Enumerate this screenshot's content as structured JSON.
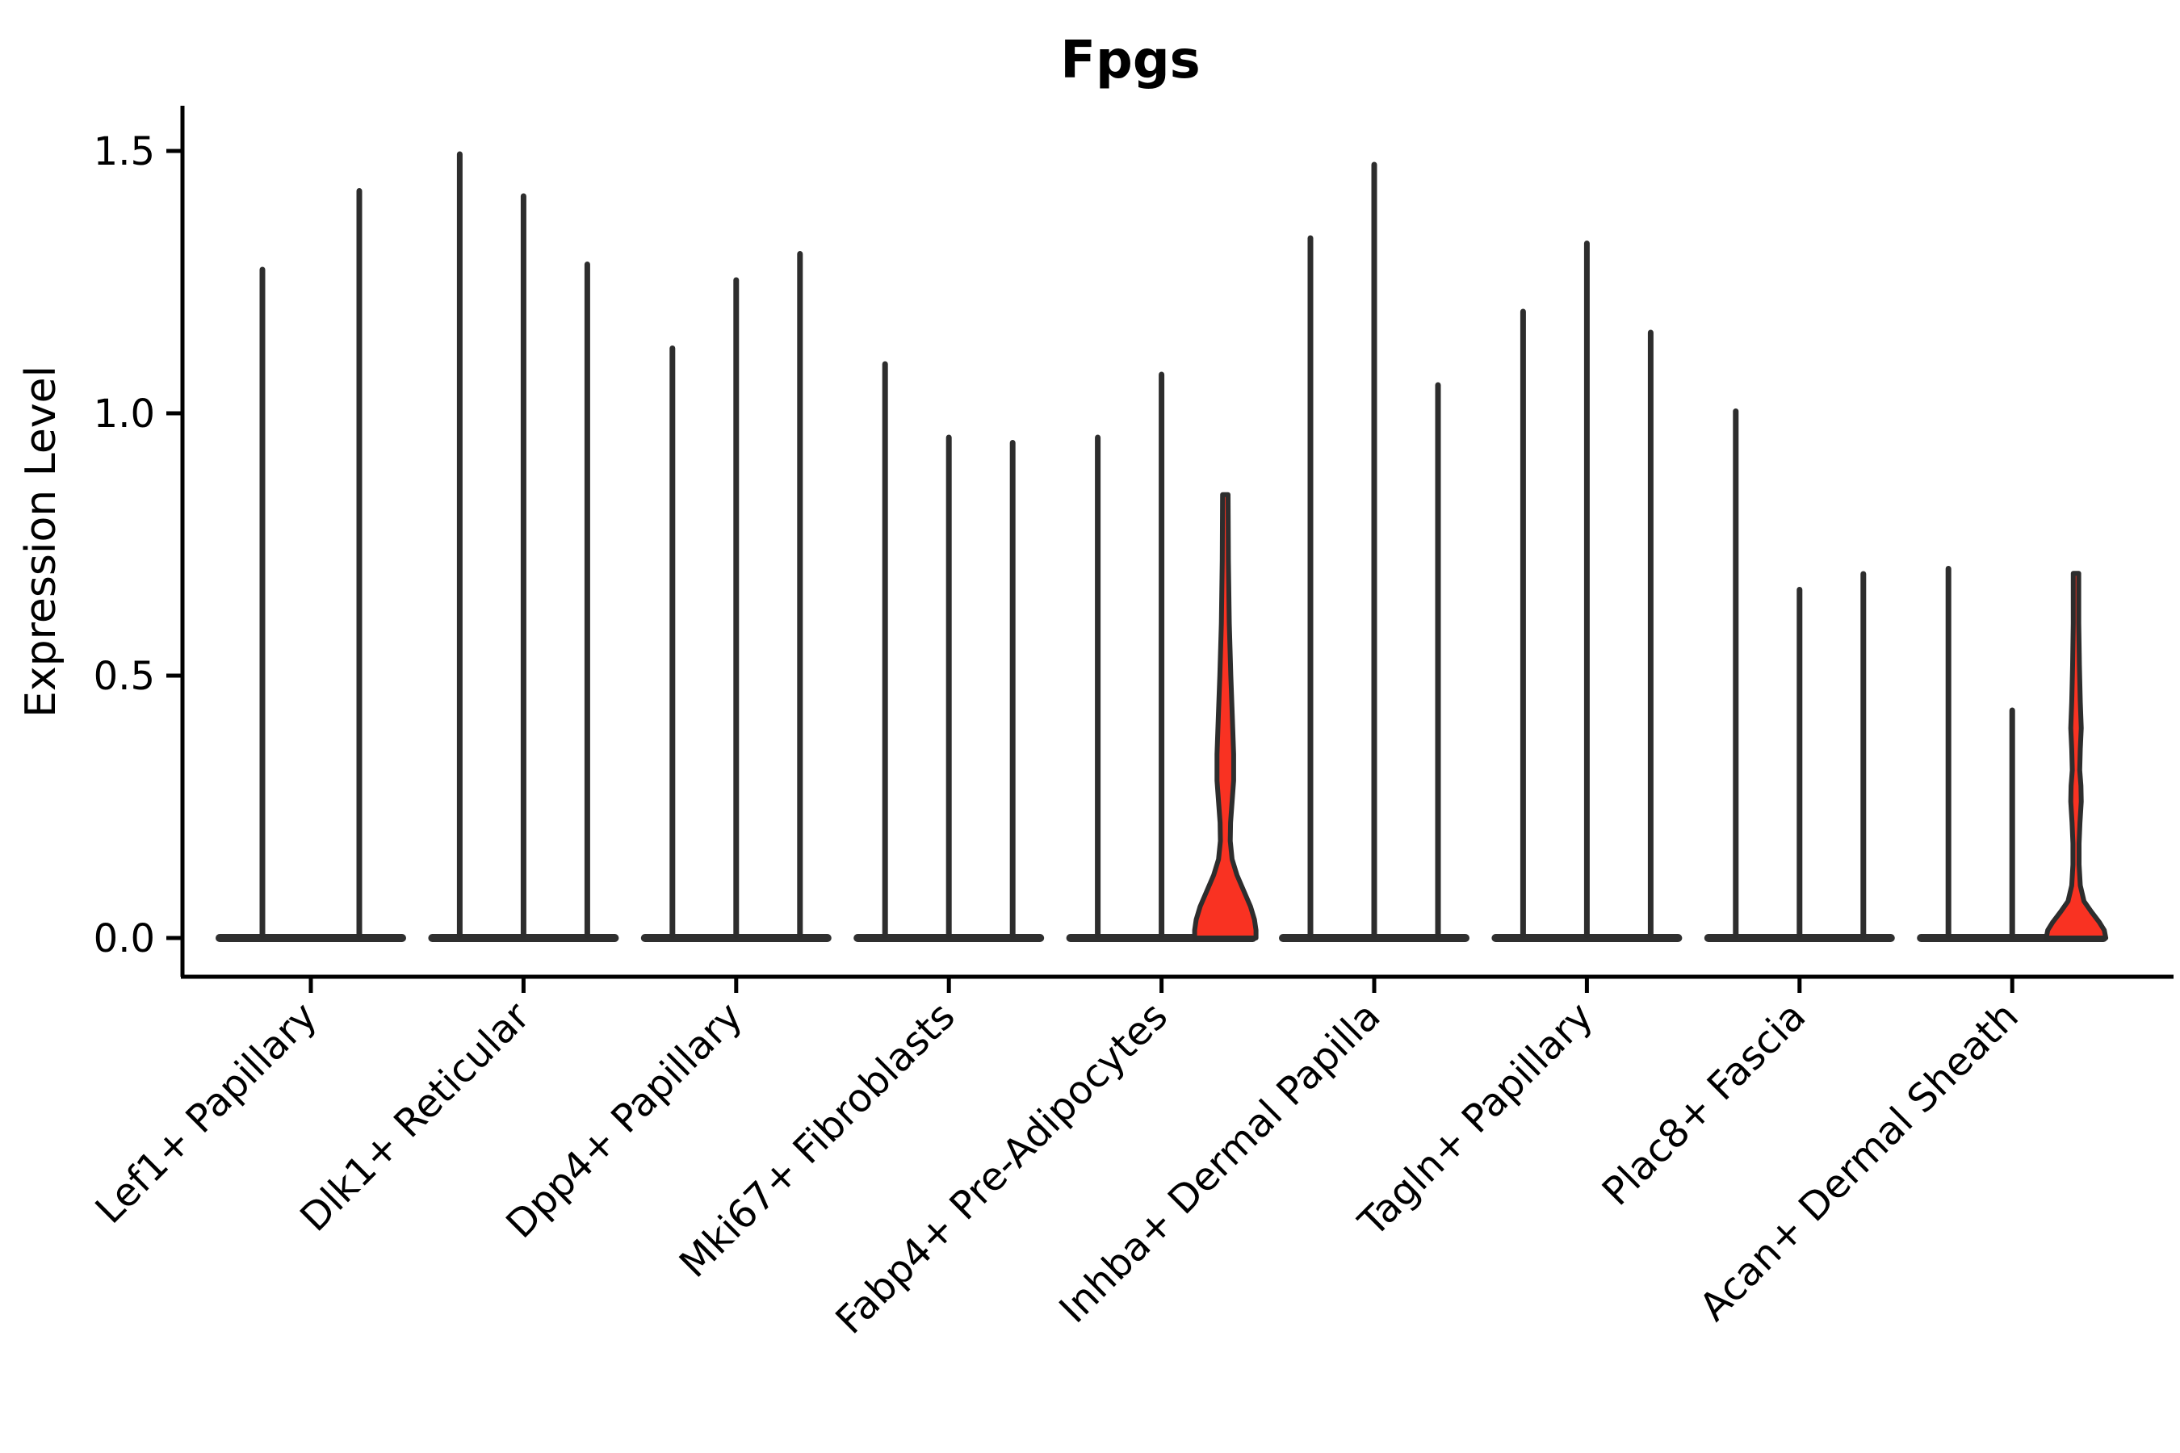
{
  "colors": {
    "violin_stroke": "#2d2d2d",
    "baseline_fill": "#2f2f2f",
    "highlight_fill": "#f93222",
    "axis": "#000000"
  },
  "chart_data": {
    "type": "violin",
    "title": "Fpgs",
    "ylabel": "Expression Level",
    "xlabel": "",
    "yticks": [
      0.0,
      0.5,
      1.0,
      1.5
    ],
    "ylim": [
      0.0,
      1.58
    ],
    "grid": false,
    "legend": "none",
    "groups": [
      {
        "label": "Lef1+ Papillary",
        "violins": [
          {
            "max": 1.28
          },
          {
            "max": 1.43
          }
        ]
      },
      {
        "label": "Dlk1+ Reticular",
        "violins": [
          {
            "max": 1.5
          },
          {
            "max": 1.42
          },
          {
            "max": 1.29
          }
        ]
      },
      {
        "label": "Dpp4+ Papillary",
        "violins": [
          {
            "max": 1.13
          },
          {
            "max": 1.26
          },
          {
            "max": 1.31
          }
        ]
      },
      {
        "label": "Mki67+ Fibroblasts",
        "violins": [
          {
            "max": 1.1
          },
          {
            "max": 0.96
          },
          {
            "max": 0.95
          }
        ]
      },
      {
        "label": "Fabp4+ Pre-Adipocytes",
        "violins": [
          {
            "max": 0.96
          },
          {
            "max": 1.08
          },
          {
            "max": 0.85,
            "highlight": true,
            "profile": [
              [
                0.845,
                0.09
              ],
              [
                0.72,
                0.1
              ],
              [
                0.6,
                0.13
              ],
              [
                0.5,
                0.18
              ],
              [
                0.42,
                0.23
              ],
              [
                0.35,
                0.27
              ],
              [
                0.3,
                0.27
              ],
              [
                0.26,
                0.22
              ],
              [
                0.22,
                0.17
              ],
              [
                0.185,
                0.16
              ],
              [
                0.15,
                0.22
              ],
              [
                0.12,
                0.38
              ],
              [
                0.09,
                0.6
              ],
              [
                0.06,
                0.82
              ],
              [
                0.035,
                0.95
              ],
              [
                0.015,
                1.0
              ],
              [
                0.0,
                1.0
              ]
            ]
          }
        ]
      },
      {
        "label": "Inhba+ Dermal Papilla",
        "violins": [
          {
            "max": 1.34
          },
          {
            "max": 1.48
          },
          {
            "max": 1.06
          }
        ]
      },
      {
        "label": "Tagln+ Papillary",
        "violins": [
          {
            "max": 1.2
          },
          {
            "max": 1.33
          },
          {
            "max": 1.16
          }
        ]
      },
      {
        "label": "Plac8+ Fascia",
        "violins": [
          {
            "max": 1.01
          },
          {
            "max": 0.67
          },
          {
            "max": 0.7
          }
        ]
      },
      {
        "label": "Acan+ Dermal Sheath",
        "violins": [
          {
            "max": 0.71
          },
          {
            "max": 0.44
          },
          {
            "max": 0.7,
            "highlight": true,
            "profile": [
              [
                0.695,
                0.09
              ],
              [
                0.6,
                0.09
              ],
              [
                0.52,
                0.11
              ],
              [
                0.45,
                0.14
              ],
              [
                0.4,
                0.17
              ],
              [
                0.36,
                0.14
              ],
              [
                0.32,
                0.12
              ],
              [
                0.29,
                0.16
              ],
              [
                0.26,
                0.17
              ],
              [
                0.22,
                0.13
              ],
              [
                0.18,
                0.1
              ],
              [
                0.14,
                0.1
              ],
              [
                0.1,
                0.14
              ],
              [
                0.07,
                0.26
              ],
              [
                0.05,
                0.5
              ],
              [
                0.03,
                0.76
              ],
              [
                0.015,
                0.92
              ],
              [
                0.0,
                0.97
              ]
            ]
          }
        ]
      }
    ]
  }
}
